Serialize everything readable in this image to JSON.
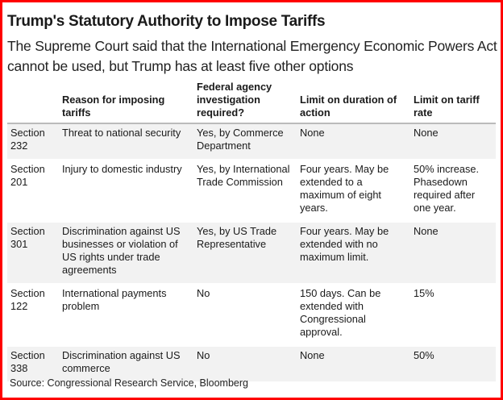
{
  "title": "Trump's Statutory Authority to Impose Tariffs",
  "subtitle": "The Supreme Court said that the International Emergency Economic Powers Act cannot be used, but Trump has at least five other options",
  "headers": [
    "",
    "Reason for imposing tariffs",
    "Federal agency investigation required?",
    "Limit on duration of action",
    "Limit on tariff rate"
  ],
  "rows": [
    [
      "Section 232",
      "Threat to national security",
      "Yes, by Commerce Department",
      "None",
      "None"
    ],
    [
      "Section 201",
      "Injury to domestic industry",
      "Yes, by International Trade Commission",
      "Four years. May be extended to a maximum of eight years.",
      "50% increase. Phasedown required after one year."
    ],
    [
      "Section 301",
      "Discrimination against US businesses or violation of US rights under trade agreements",
      "Yes, by US Trade Representative",
      "Four years. May be extended with no maximum limit.",
      "None"
    ],
    [
      "Section 122",
      "International payments problem",
      "No",
      "150 days. Can be extended with Congressional approval.",
      "15%"
    ],
    [
      "Section 338",
      "Discrimination against US commerce",
      "No",
      "None",
      "50%"
    ]
  ],
  "source": "Source: Congressional Research Service, Bloomberg"
}
